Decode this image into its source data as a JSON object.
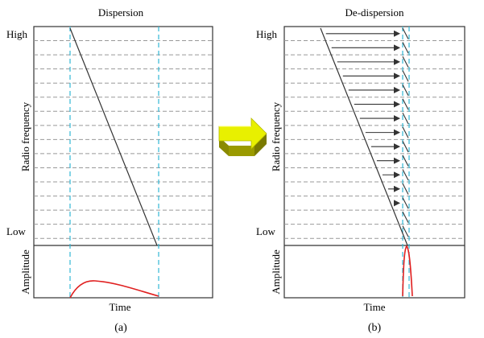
{
  "panel_a": {
    "title": "Dispersion",
    "y_label": "Radio frequency",
    "high_label": "High",
    "low_label": "Low",
    "amp_label": "Amplitude",
    "x_label": "Time",
    "caption": "(a)"
  },
  "panel_b": {
    "title": "De-dispersion",
    "y_label": "Radio frequency",
    "high_label": "High",
    "low_label": "Low",
    "amp_label": "Amplitude",
    "x_label": "Time",
    "caption": "(b)"
  },
  "colors": {
    "frame": "#333333",
    "grid_dash": "#999999",
    "cyan_marker": "#33b8d6",
    "sweep_line": "#333333",
    "pulse": "#e02020",
    "arrow_face": "#e8f000",
    "arrow_side": "#8a8a00"
  },
  "channels_count": 15
}
